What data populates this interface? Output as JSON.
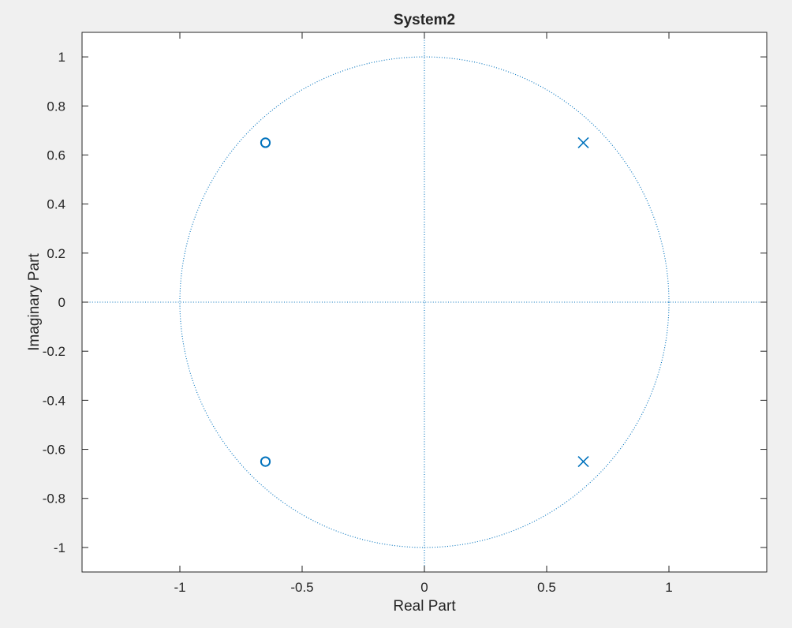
{
  "chart_data": {
    "type": "scatter",
    "title": "System2",
    "xlabel": "Real Part",
    "ylabel": "Imaginary Part",
    "xlim": [
      -1.4,
      1.4
    ],
    "ylim": [
      -1.1,
      1.1
    ],
    "xticks": [
      -1,
      -0.5,
      0,
      0.5,
      1
    ],
    "xtick_labels": [
      "-1",
      "-0.5",
      "0",
      "0.5",
      "1"
    ],
    "yticks": [
      1,
      0.8,
      0.6,
      0.4,
      0.2,
      0,
      -0.2,
      -0.4,
      -0.6,
      -0.8,
      -1
    ],
    "ytick_labels": [
      "1",
      "0.8",
      "0.6",
      "0.4",
      "0.2",
      "0",
      "-0.2",
      "-0.4",
      "-0.6",
      "-0.8",
      "-1"
    ],
    "grid": false,
    "unit_circle": true,
    "series": [
      {
        "marker": "o",
        "color": "#0072bd",
        "points": [
          {
            "x": -0.65,
            "y": 0.65
          },
          {
            "x": -0.65,
            "y": -0.65
          }
        ]
      },
      {
        "marker": "x",
        "color": "#0072bd",
        "points": [
          {
            "x": 0.65,
            "y": 0.65
          },
          {
            "x": 0.65,
            "y": -0.65
          }
        ]
      }
    ]
  },
  "colors": {
    "background": "#f0f0f0",
    "axes_background": "#ffffff",
    "axis": "#262626",
    "marker": "#0072bd"
  }
}
